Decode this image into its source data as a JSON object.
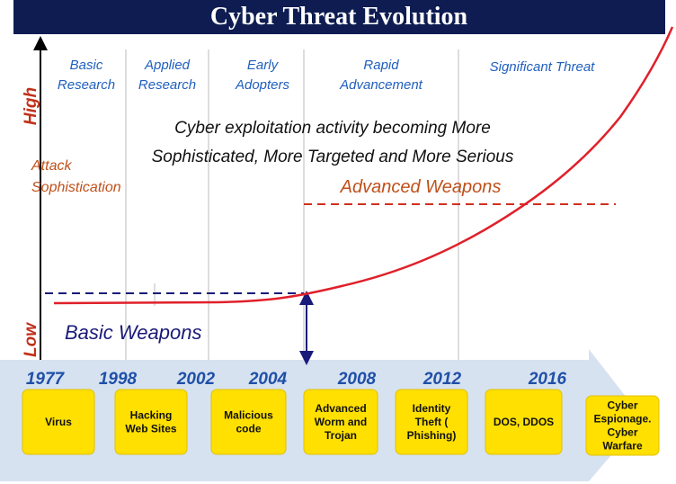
{
  "title": "Cyber Threat Evolution",
  "phases": [
    [
      "Basic",
      "Research"
    ],
    [
      "Applied",
      "Research"
    ],
    [
      "Early",
      "Adopters"
    ],
    [
      "Rapid",
      "Advancement"
    ],
    [
      "Significant Threat"
    ]
  ],
  "y_axis": {
    "high": "High",
    "low": "Low",
    "label": [
      "Attack",
      "Sophistication"
    ]
  },
  "headline": [
    "Cyber exploitation activity becoming More",
    "Sophisticated, More Targeted  and  More Serious"
  ],
  "advanced_weapons": "Advanced Weapons",
  "basic_weapons": "Basic Weapons",
  "years": [
    "1977",
    "1998",
    "2002",
    "2004",
    "2008",
    "2012",
    "2016"
  ],
  "boxes": [
    [
      "Virus"
    ],
    [
      "Hacking",
      "Web Sites"
    ],
    [
      "Malicious",
      "code"
    ],
    [
      "Advanced",
      "Worm and",
      "Trojan"
    ],
    [
      "Identity",
      "Theft (",
      "Phishing)"
    ],
    [
      "DOS, DDOS"
    ],
    [
      "Cyber",
      "Espionage.",
      "Cyber",
      "Warfare"
    ]
  ]
}
